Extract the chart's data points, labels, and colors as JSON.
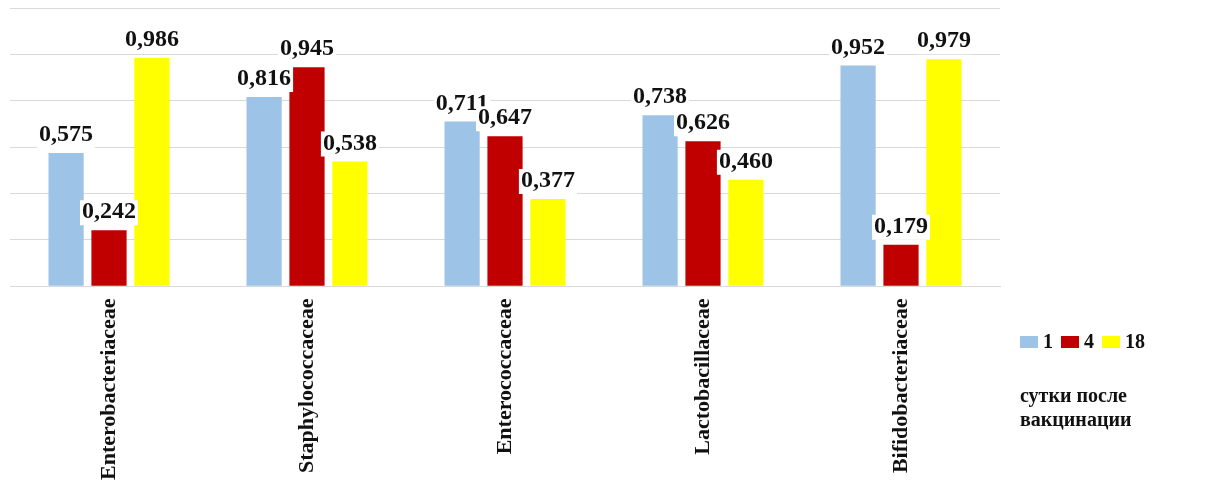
{
  "chart_data": {
    "type": "bar",
    "categories": [
      "Enterobacteriaceae",
      "Staphylococcaceae",
      "Enterococcaceae",
      "Lactobacillaceae",
      "Bifidobacteriaceae"
    ],
    "series": [
      {
        "name": "1",
        "color": "#9dc3e6",
        "values": [
          0.575,
          0.816,
          0.711,
          0.738,
          0.952
        ],
        "value_labels": [
          "0,575",
          "0,816",
          "0,711",
          "0,738",
          "0,952"
        ]
      },
      {
        "name": "4",
        "color": "#c00000",
        "values": [
          0.242,
          0.945,
          0.647,
          0.626,
          0.179
        ],
        "value_labels": [
          "0,242",
          "0,945",
          "0,647",
          "0,626",
          "0,179"
        ]
      },
      {
        "name": "18",
        "color": "#ffff00",
        "values": [
          0.986,
          0.538,
          0.377,
          0.46,
          0.979
        ],
        "value_labels": [
          "0,986",
          "0,538",
          "0,377",
          "0,460",
          "0,979"
        ]
      }
    ],
    "ylim": [
      0,
      1.2
    ],
    "yticks": [
      {
        "value": 0,
        "label": null
      },
      {
        "value": 0.2,
        "label": null
      },
      {
        "value": 0.4,
        "label": null
      },
      {
        "value": 0.6,
        "label": null
      },
      {
        "value": 0.8,
        "label": null
      },
      {
        "value": 1,
        "label": null
      },
      {
        "value": 1.2,
        "label": null
      }
    ],
    "tick_labels": "x",
    "grid": "y",
    "legend": "bottom right",
    "legend_title": "сутки после вакцинации"
  }
}
